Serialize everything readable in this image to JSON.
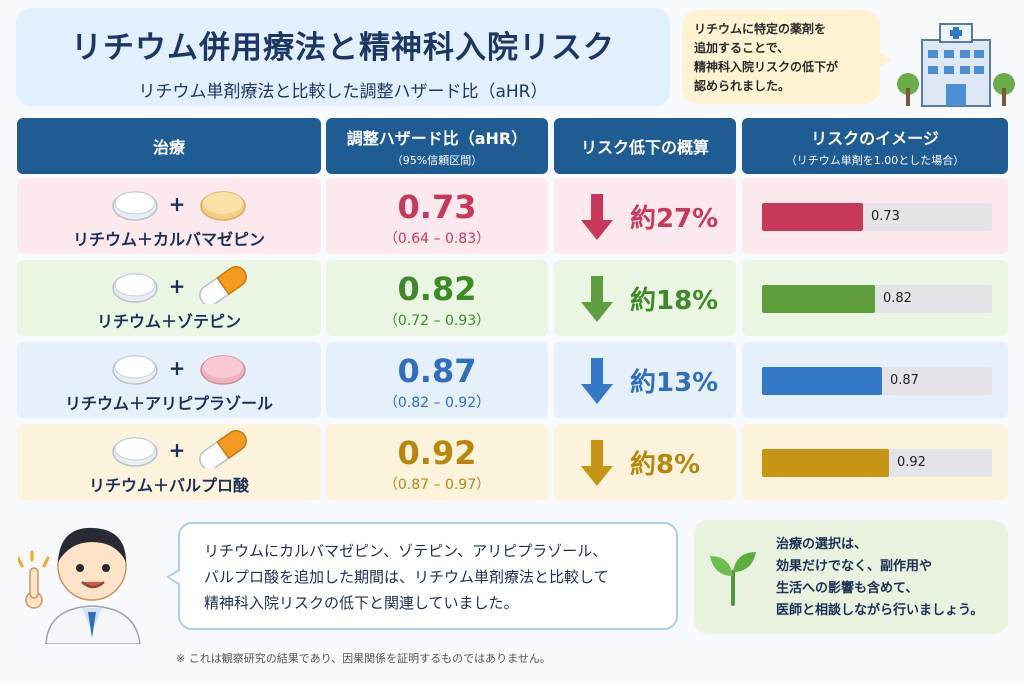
{
  "header": {
    "title": "リチウム併用療法と精神科入院リスク",
    "subtitle": "リチウム単剤療法と比較した調整ハザード比（aHR）",
    "note_lines": [
      "リチウムに特定の薬剤を",
      "追加することで、",
      "精神科入院リスクの低下が",
      "認められました。"
    ]
  },
  "table": {
    "col_treatment": "治療",
    "col_hr": "調整ハザード比（aHR）",
    "col_hr_sub": "（95%信頼区間）",
    "col_reduction": "リスク低下の概算",
    "col_image": "リスクのイメージ",
    "col_image_sub": "（リチウム単剤を1.00とした場合）",
    "plus": "+"
  },
  "chart_data": {
    "type": "bar",
    "categories": [
      "リチウム＋カルバマゼピン",
      "リチウム＋ゾテピン",
      "リチウム＋アリピプラゾール",
      "リチウム＋バルプロ酸"
    ],
    "values": [
      0.73,
      0.82,
      0.87,
      0.92
    ],
    "value_labels": [
      "0.73",
      "0.82",
      "0.87",
      "0.92"
    ],
    "ci": [
      "（0.64 – 0.83）",
      "（0.72 – 0.93）",
      "（0.82 – 0.92）",
      "（0.87 – 0.97）"
    ],
    "reductions": [
      "約27%",
      "約18%",
      "約13%",
      "約8%"
    ],
    "reference": 1.0,
    "xlim": [
      0,
      1.0
    ],
    "colors": [
      "#c8385a",
      "#5e9e3c",
      "#3478c9",
      "#c69514"
    ],
    "value_colors": [
      "#c8385a",
      "#3d8a27",
      "#2f6fbf",
      "#b8860b"
    ],
    "row_backgrounds": [
      "#fbe9ee",
      "#ebf5e4",
      "#e6f0fb",
      "#fcf3dd"
    ],
    "pill_types": [
      "tablet-yellow",
      "capsule-orange",
      "tablet-pink",
      "capsule-orange"
    ]
  },
  "speech": {
    "lines": [
      "リチウムにカルバマゼピン、ゾテピン、アリピプラゾール、",
      "バルプロ酸を追加した期間は、リチウム単剤療法と比較して",
      "精神科入院リスクの低下と関連していました。"
    ]
  },
  "advice": {
    "lines": [
      "治療の選択は、",
      "効果だけでなく、副作用や",
      "生活への影響も含めて、",
      "医師と相談しながら行いましょう。"
    ]
  },
  "footnote": "※ これは観察研究の結果であり、因果関係を証明するものではありません。"
}
